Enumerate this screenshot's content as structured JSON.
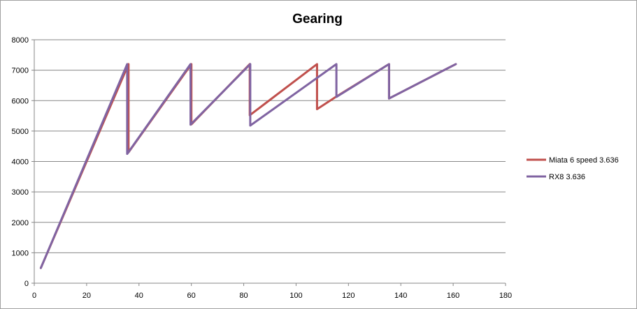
{
  "chart_data": {
    "type": "line",
    "title": "Gearing",
    "xlabel": "",
    "ylabel": "",
    "xlim": [
      0,
      180
    ],
    "ylim": [
      0,
      8000
    ],
    "x_ticks": [
      0,
      20,
      40,
      60,
      80,
      100,
      120,
      140,
      160,
      180
    ],
    "y_ticks": [
      0,
      1000,
      2000,
      3000,
      4000,
      5000,
      6000,
      7000,
      8000
    ],
    "grid": "horizontal",
    "legend_position": "right",
    "series": [
      {
        "name": "Miata 6 speed 3.636",
        "color": "#c0504d",
        "x": [
          2.5,
          36,
          36,
          60,
          60,
          82.3,
          82.3,
          108,
          108,
          115.5,
          115.5,
          135.5,
          135.5,
          161
        ],
        "y": [
          500,
          7200,
          4300,
          7200,
          5220,
          7200,
          5520,
          7200,
          5720,
          6140,
          6140,
          7200,
          6070,
          7200
        ]
      },
      {
        "name": "RX8 3.636",
        "color": "#8064a2",
        "x": [
          2.5,
          35.5,
          35.5,
          59.7,
          59.7,
          82.5,
          82.5,
          115.4,
          115.4,
          135.5,
          135.5,
          161
        ],
        "y": [
          500,
          7200,
          4250,
          7200,
          5210,
          7200,
          5180,
          7200,
          6120,
          7200,
          6070,
          7200
        ]
      }
    ]
  }
}
